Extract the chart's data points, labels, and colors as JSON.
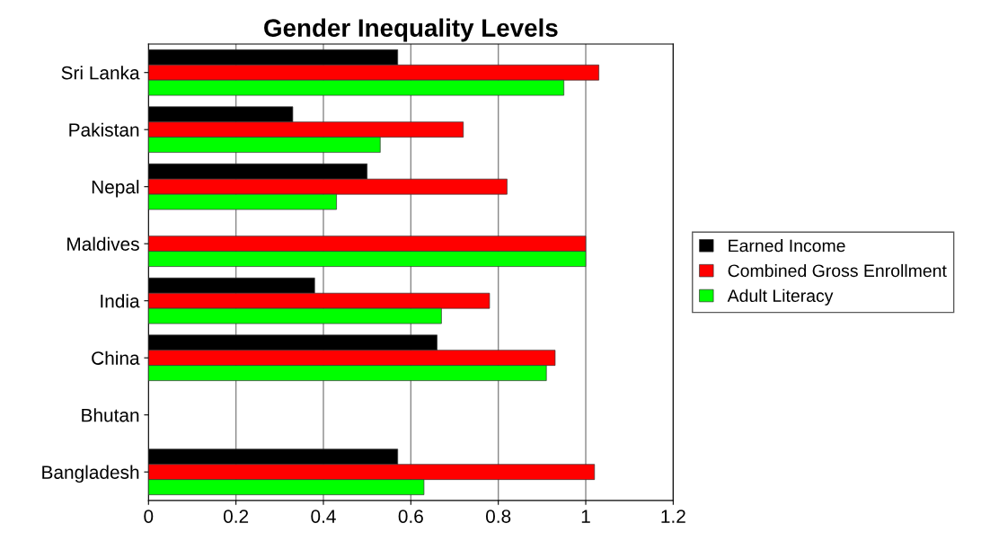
{
  "chart_data": {
    "type": "bar",
    "orientation": "horizontal",
    "title": "Gender Inequality Levels",
    "categories": [
      "Sri Lanka",
      "Pakistan",
      "Nepal",
      "Maldives",
      "India",
      "China",
      "Bhutan",
      "Bangladesh"
    ],
    "series": [
      {
        "name": "Earned Income",
        "color": "#000000",
        "values": [
          0.57,
          0.33,
          0.5,
          null,
          0.38,
          0.66,
          null,
          0.57
        ]
      },
      {
        "name": "Combined Gross Enrollment",
        "color": "#ff0000",
        "values": [
          1.03,
          0.72,
          0.82,
          1.0,
          0.78,
          0.93,
          null,
          1.02
        ]
      },
      {
        "name": "Adult Literacy",
        "color": "#00ff00",
        "values": [
          0.95,
          0.53,
          0.43,
          1.0,
          0.67,
          0.91,
          null,
          0.63
        ]
      }
    ],
    "xlim": [
      0,
      1.2
    ],
    "xticks": [
      0,
      0.2,
      0.4,
      0.6,
      0.8,
      1,
      1.2
    ],
    "grid": "x",
    "legend": "right"
  }
}
